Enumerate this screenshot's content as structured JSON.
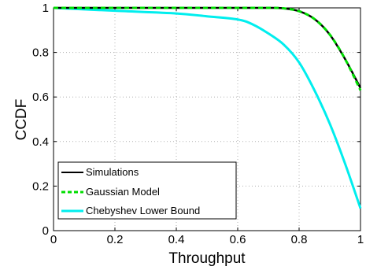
{
  "chart_data": {
    "type": "line",
    "xlabel": "Throughput",
    "ylabel": "CCDF",
    "xlim": [
      0,
      1
    ],
    "ylim": [
      0,
      1
    ],
    "xticks": [
      "0",
      "0.2",
      "0.4",
      "0.6",
      "0.8",
      "1"
    ],
    "yticks": [
      "0",
      "0.2",
      "0.4",
      "0.6",
      "0.8",
      "1"
    ],
    "grid": true,
    "legend_position": "bottom-left",
    "series": [
      {
        "name": "Simulations",
        "color": "#000000",
        "style": "solid",
        "x": [
          0,
          0.5,
          0.7,
          0.75,
          0.8,
          0.85,
          0.9,
          0.95,
          1.0
        ],
        "y": [
          1.0,
          1.0,
          1.0,
          0.998,
          0.985,
          0.95,
          0.88,
          0.77,
          0.64
        ]
      },
      {
        "name": "Gaussian Model",
        "color": "#00dd00",
        "style": "dashed",
        "x": [
          0,
          0.5,
          0.7,
          0.75,
          0.8,
          0.85,
          0.9,
          0.95,
          1.0
        ],
        "y": [
          1.0,
          1.0,
          1.0,
          0.998,
          0.985,
          0.95,
          0.88,
          0.77,
          0.63
        ]
      },
      {
        "name": "Chebyshev Lower Bound",
        "color": "#00eeee",
        "style": "solid",
        "x": [
          0,
          0.2,
          0.4,
          0.5,
          0.6,
          0.65,
          0.7,
          0.75,
          0.8,
          0.85,
          0.9,
          0.95,
          1.0
        ],
        "y": [
          1.0,
          0.987,
          0.975,
          0.962,
          0.948,
          0.925,
          0.885,
          0.835,
          0.755,
          0.63,
          0.48,
          0.3,
          0.1
        ]
      }
    ]
  }
}
